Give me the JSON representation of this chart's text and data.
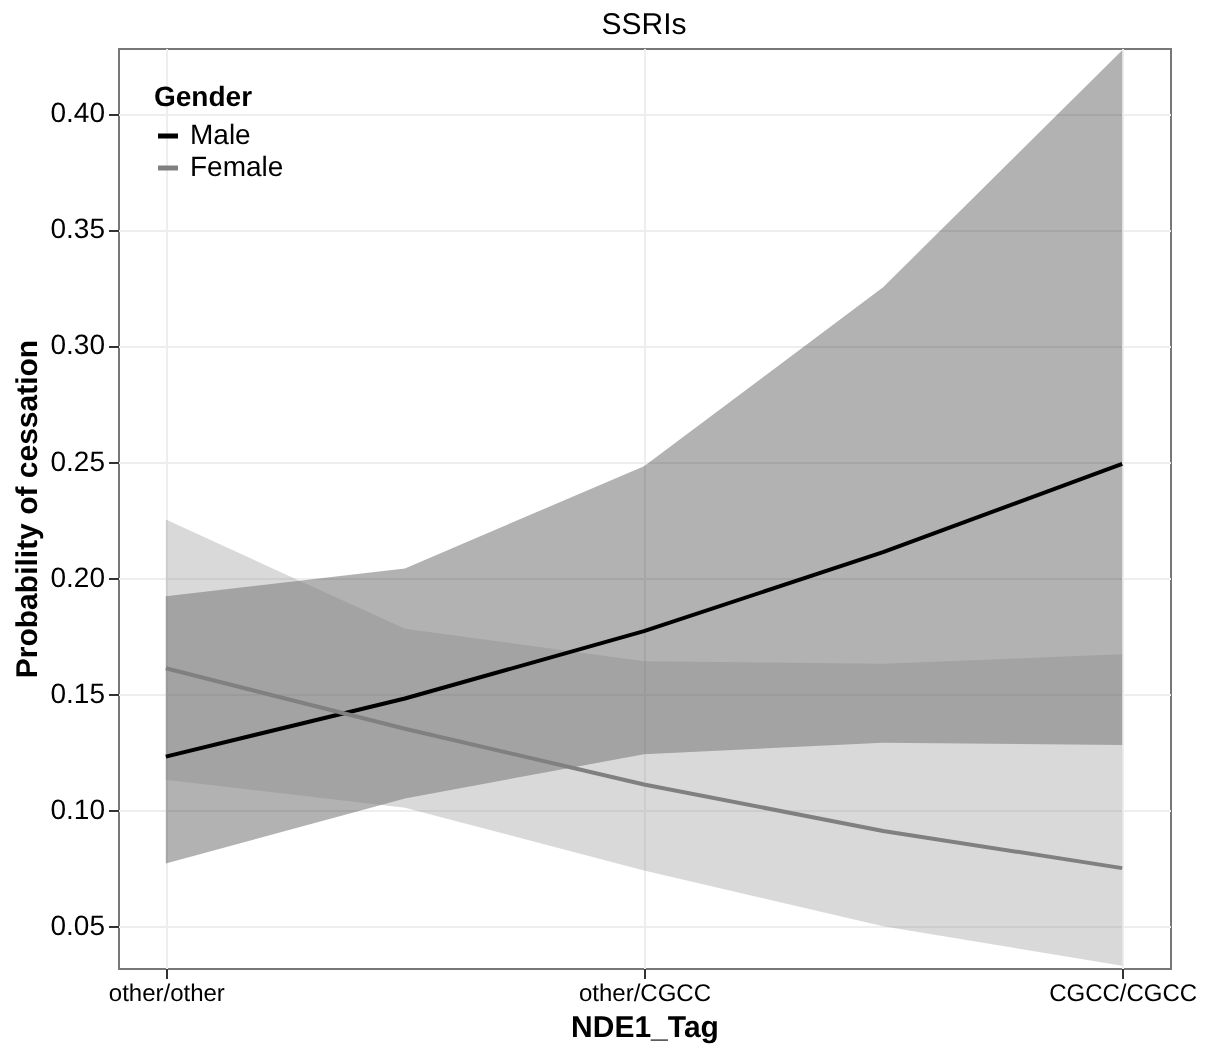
{
  "chart_data": {
    "type": "line",
    "title": "SSRIs",
    "xlabel": "NDE1_Tag",
    "ylabel": "Probability of cessation",
    "legend_title": "Gender",
    "categories": [
      "other/other",
      null,
      "other/CGCC",
      null,
      "CGCC/CGCC"
    ],
    "ylim": [
      0.032,
      0.428
    ],
    "yticks": [
      0.05,
      {
        "value": 0.1,
        "label": "0.10"
      },
      0.15,
      {
        "value": 0.2,
        "label": "0.20"
      },
      0.25,
      {
        "value": 0.3,
        "label": "0.30"
      },
      0.35,
      {
        "value": 0.4,
        "label": "0.40"
      }
    ],
    "series": [
      {
        "name": "Male",
        "color": "#000000",
        "values": [
          0.123,
          0.148,
          0.177,
          0.211,
          0.249
        ],
        "lower": [
          0.077,
          0.105,
          0.124,
          0.129,
          0.128
        ],
        "upper": [
          0.192,
          0.204,
          0.248,
          0.325,
          0.427
        ]
      },
      {
        "name": "Female",
        "color": "#808080",
        "values": [
          0.161,
          0.135,
          0.111,
          0.091,
          0.075
        ],
        "lower": [
          0.113,
          0.101,
          0.074,
          0.05,
          0.033
        ],
        "upper": [
          0.225,
          0.178,
          0.164,
          0.163,
          0.167
        ]
      }
    ],
    "grid": true,
    "legend": "top left",
    "marker": "none",
    "line_style": "solid"
  }
}
